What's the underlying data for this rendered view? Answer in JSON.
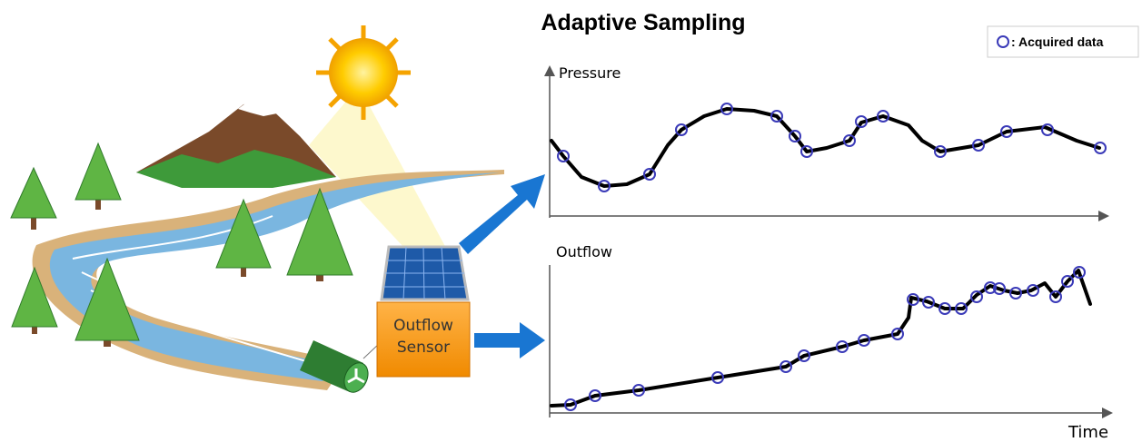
{
  "title": "Adaptive Sampling",
  "legend": {
    "label": ": Acquired data"
  },
  "panels": [
    {
      "label": "Pressure"
    },
    {
      "label": "Outflow"
    }
  ],
  "x_axis_label": "Time",
  "sensor": {
    "lines": [
      "Outflow",
      "Sensor"
    ]
  }
}
